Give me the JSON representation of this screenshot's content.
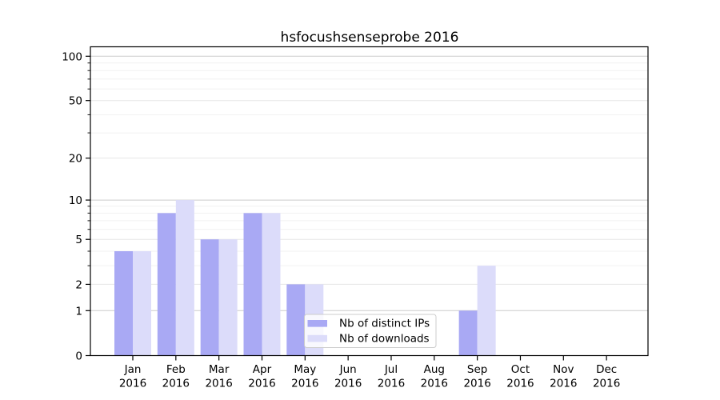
{
  "chart_data": {
    "type": "bar",
    "title": "hsfocushsenseprobe 2016",
    "categories": [
      "Jan",
      "Feb",
      "Mar",
      "Apr",
      "May",
      "Jun",
      "Jul",
      "Aug",
      "Sep",
      "Oct",
      "Nov",
      "Dec"
    ],
    "x_tick_second_line": "2016",
    "series": [
      {
        "name": "Nb of distinct IPs",
        "color": "#a9a9f4",
        "values": [
          4,
          8,
          5,
          8,
          2,
          0,
          0,
          0,
          1,
          0,
          0,
          0
        ]
      },
      {
        "name": "Nb of downloads",
        "color": "#dcdcfa",
        "values": [
          4,
          10,
          5,
          8,
          2,
          0,
          0,
          0,
          3,
          0,
          0,
          0
        ]
      }
    ],
    "y_axis": {
      "scale": "log1p",
      "ylim": [
        0,
        100
      ],
      "labeled_ticks": [
        0,
        1,
        2,
        5,
        10,
        20,
        50,
        100
      ],
      "decade_ticks": [
        1,
        10,
        100
      ],
      "minor_ticks": [
        3,
        4,
        6,
        7,
        8,
        9,
        30,
        40,
        60,
        70,
        80,
        90
      ]
    },
    "legend": {
      "position": "lower center",
      "entries": [
        "Nb of distinct IPs",
        "Nb of downloads"
      ]
    },
    "grid": true
  }
}
